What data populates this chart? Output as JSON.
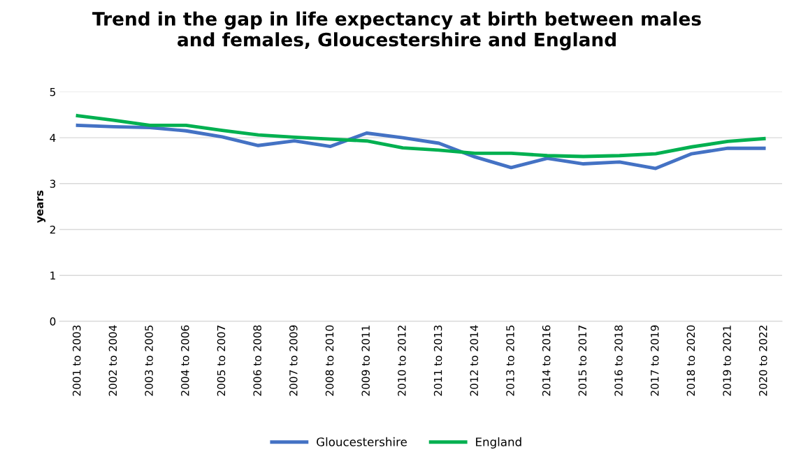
{
  "chart_data": {
    "type": "line",
    "title": "Trend in the gap in life expectancy at birth between males\nand females, Gloucestershire and England",
    "ylabel": "years",
    "categories": [
      "2001 to 2003",
      "2002 to 2004",
      "2003 to 2005",
      "2004 to 2006",
      "2005 to 2007",
      "2006 to 2008",
      "2007 to 2009",
      "2008 to 2010",
      "2009 to 2011",
      "2010 to 2012",
      "2011 to 2013",
      "2012 to 2014",
      "2013 to 2015",
      "2014 to 2016",
      "2015 to 2017",
      "2016 to 2018",
      "2017 to 2019",
      "2018 to 2020",
      "2019 to 2021",
      "2020 to 2022"
    ],
    "series": [
      {
        "name": "Gloucestershire",
        "color": "#4472c4",
        "values": [
          4.27,
          4.24,
          4.22,
          4.15,
          4.02,
          3.83,
          3.93,
          3.81,
          4.1,
          4.0,
          3.88,
          3.58,
          3.35,
          3.55,
          3.43,
          3.47,
          3.33,
          3.65,
          3.77,
          3.77
        ]
      },
      {
        "name": "England",
        "color": "#00b050",
        "values": [
          4.48,
          4.38,
          4.27,
          4.27,
          4.16,
          4.06,
          4.01,
          3.97,
          3.93,
          3.78,
          3.73,
          3.66,
          3.66,
          3.61,
          3.59,
          3.61,
          3.65,
          3.8,
          3.92,
          3.98
        ]
      }
    ],
    "ylim": [
      0,
      5
    ],
    "yticks": [
      0,
      1,
      2,
      3,
      4,
      5
    ],
    "grid": "y",
    "legend": "bottom",
    "marker": "none",
    "line_style": "solid"
  }
}
